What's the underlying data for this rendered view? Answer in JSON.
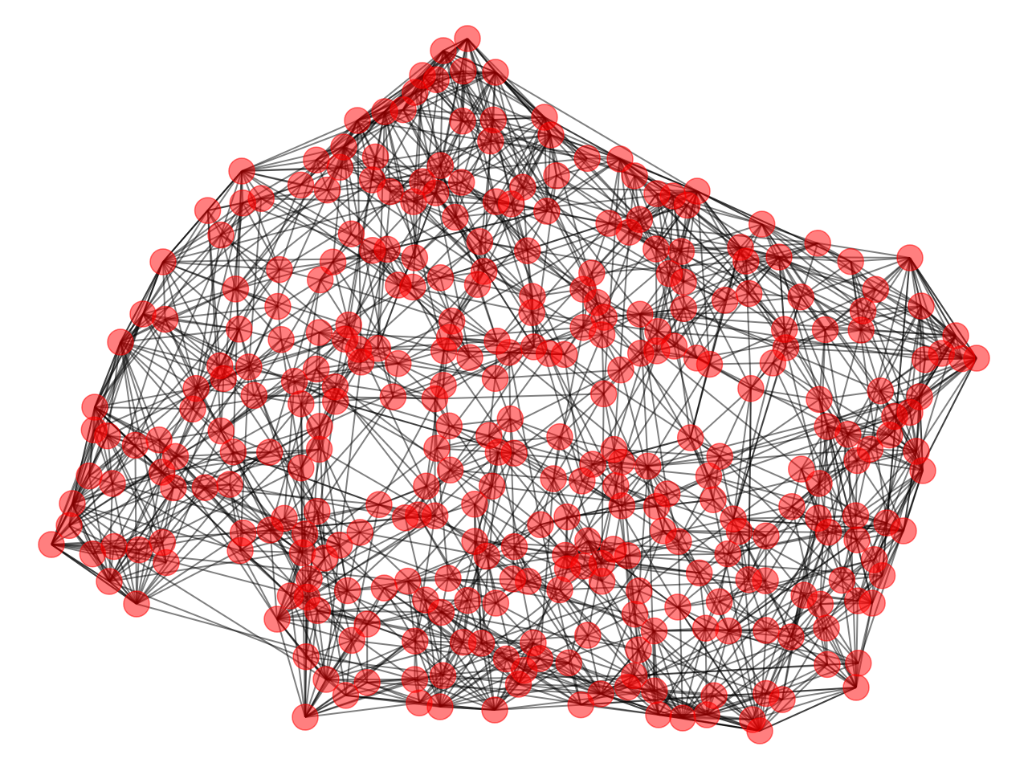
{
  "diagram": {
    "kind": "network-graph",
    "node_color": "#ff0000",
    "edge_color": "#000000",
    "background_color": "#ffffff",
    "node_count": 330,
    "outline_shape": "irregular blob, dense interior"
  }
}
